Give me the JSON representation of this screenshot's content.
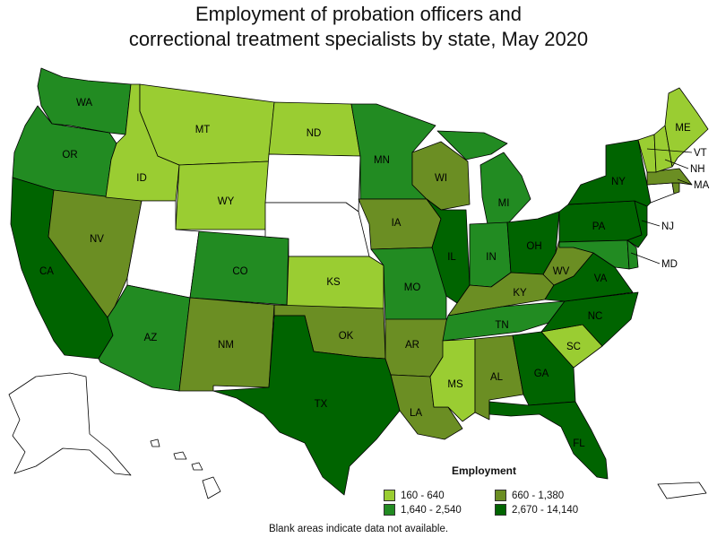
{
  "title_line1": "Employment of probation officers and",
  "title_line2": "correctional treatment specialists by state, May 2020",
  "legend": {
    "title": "Employment",
    "classes": [
      {
        "id": "c1",
        "label": "160 - 640",
        "color": "#9acd32"
      },
      {
        "id": "c2",
        "label": "660 - 1,380",
        "color": "#6b8e23"
      },
      {
        "id": "c3",
        "label": "1,640 - 2,540",
        "color": "#228b22"
      },
      {
        "id": "c4",
        "label": "2,670 - 14,140",
        "color": "#006400"
      }
    ],
    "no_data_color": "#ffffff"
  },
  "footnote": "Blank areas indicate data not available.",
  "states": {
    "WA": {
      "label": "WA",
      "class": "c3"
    },
    "OR": {
      "label": "OR",
      "class": "c3"
    },
    "CA": {
      "label": "CA",
      "class": "c4"
    },
    "NV": {
      "label": "NV",
      "class": "c2"
    },
    "ID": {
      "label": "ID",
      "class": "c1"
    },
    "MT": {
      "label": "MT",
      "class": "c1"
    },
    "WY": {
      "label": "WY",
      "class": "c1"
    },
    "UT": {
      "label": "",
      "class": "none"
    },
    "AZ": {
      "label": "AZ",
      "class": "c3"
    },
    "CO": {
      "label": "CO",
      "class": "c3"
    },
    "NM": {
      "label": "NM",
      "class": "c2"
    },
    "ND": {
      "label": "ND",
      "class": "c1"
    },
    "SD": {
      "label": "",
      "class": "none"
    },
    "NE": {
      "label": "",
      "class": "none"
    },
    "KS": {
      "label": "KS",
      "class": "c1"
    },
    "OK": {
      "label": "OK",
      "class": "c2"
    },
    "TX": {
      "label": "TX",
      "class": "c4"
    },
    "MN": {
      "label": "MN",
      "class": "c3"
    },
    "IA": {
      "label": "IA",
      "class": "c2"
    },
    "MO": {
      "label": "MO",
      "class": "c3"
    },
    "AR": {
      "label": "AR",
      "class": "c2"
    },
    "LA": {
      "label": "LA",
      "class": "c2"
    },
    "WI": {
      "label": "WI",
      "class": "c2"
    },
    "IL": {
      "label": "IL",
      "class": "c4"
    },
    "MI": {
      "label": "MI",
      "class": "c3"
    },
    "IN": {
      "label": "IN",
      "class": "c3"
    },
    "OH": {
      "label": "OH",
      "class": "c4"
    },
    "KY": {
      "label": "KY",
      "class": "c2"
    },
    "TN": {
      "label": "TN",
      "class": "c3"
    },
    "MS": {
      "label": "MS",
      "class": "c1"
    },
    "AL": {
      "label": "AL",
      "class": "c2"
    },
    "GA": {
      "label": "GA",
      "class": "c4"
    },
    "FL": {
      "label": "FL",
      "class": "c4"
    },
    "SC": {
      "label": "SC",
      "class": "c1"
    },
    "NC": {
      "label": "NC",
      "class": "c4"
    },
    "VA": {
      "label": "VA",
      "class": "c4"
    },
    "WV": {
      "label": "WV",
      "class": "c2"
    },
    "PA": {
      "label": "PA",
      "class": "c4"
    },
    "NY": {
      "label": "NY",
      "class": "c4"
    },
    "NJ": {
      "label": "NJ",
      "class": "c4"
    },
    "MD": {
      "label": "MD",
      "class": "c3"
    },
    "DE": {
      "label": "",
      "class": "c3"
    },
    "CT": {
      "label": "",
      "class": "none"
    },
    "RI": {
      "label": "",
      "class": "c2"
    },
    "MA": {
      "label": "MA",
      "class": "c2"
    },
    "VT": {
      "label": "VT",
      "class": "c1"
    },
    "NH": {
      "label": "NH",
      "class": "c1"
    },
    "ME": {
      "label": "ME",
      "class": "c1"
    },
    "AK": {
      "label": "",
      "class": "none"
    },
    "HI": {
      "label": "",
      "class": "none"
    },
    "PR": {
      "label": "",
      "class": "none"
    }
  }
}
